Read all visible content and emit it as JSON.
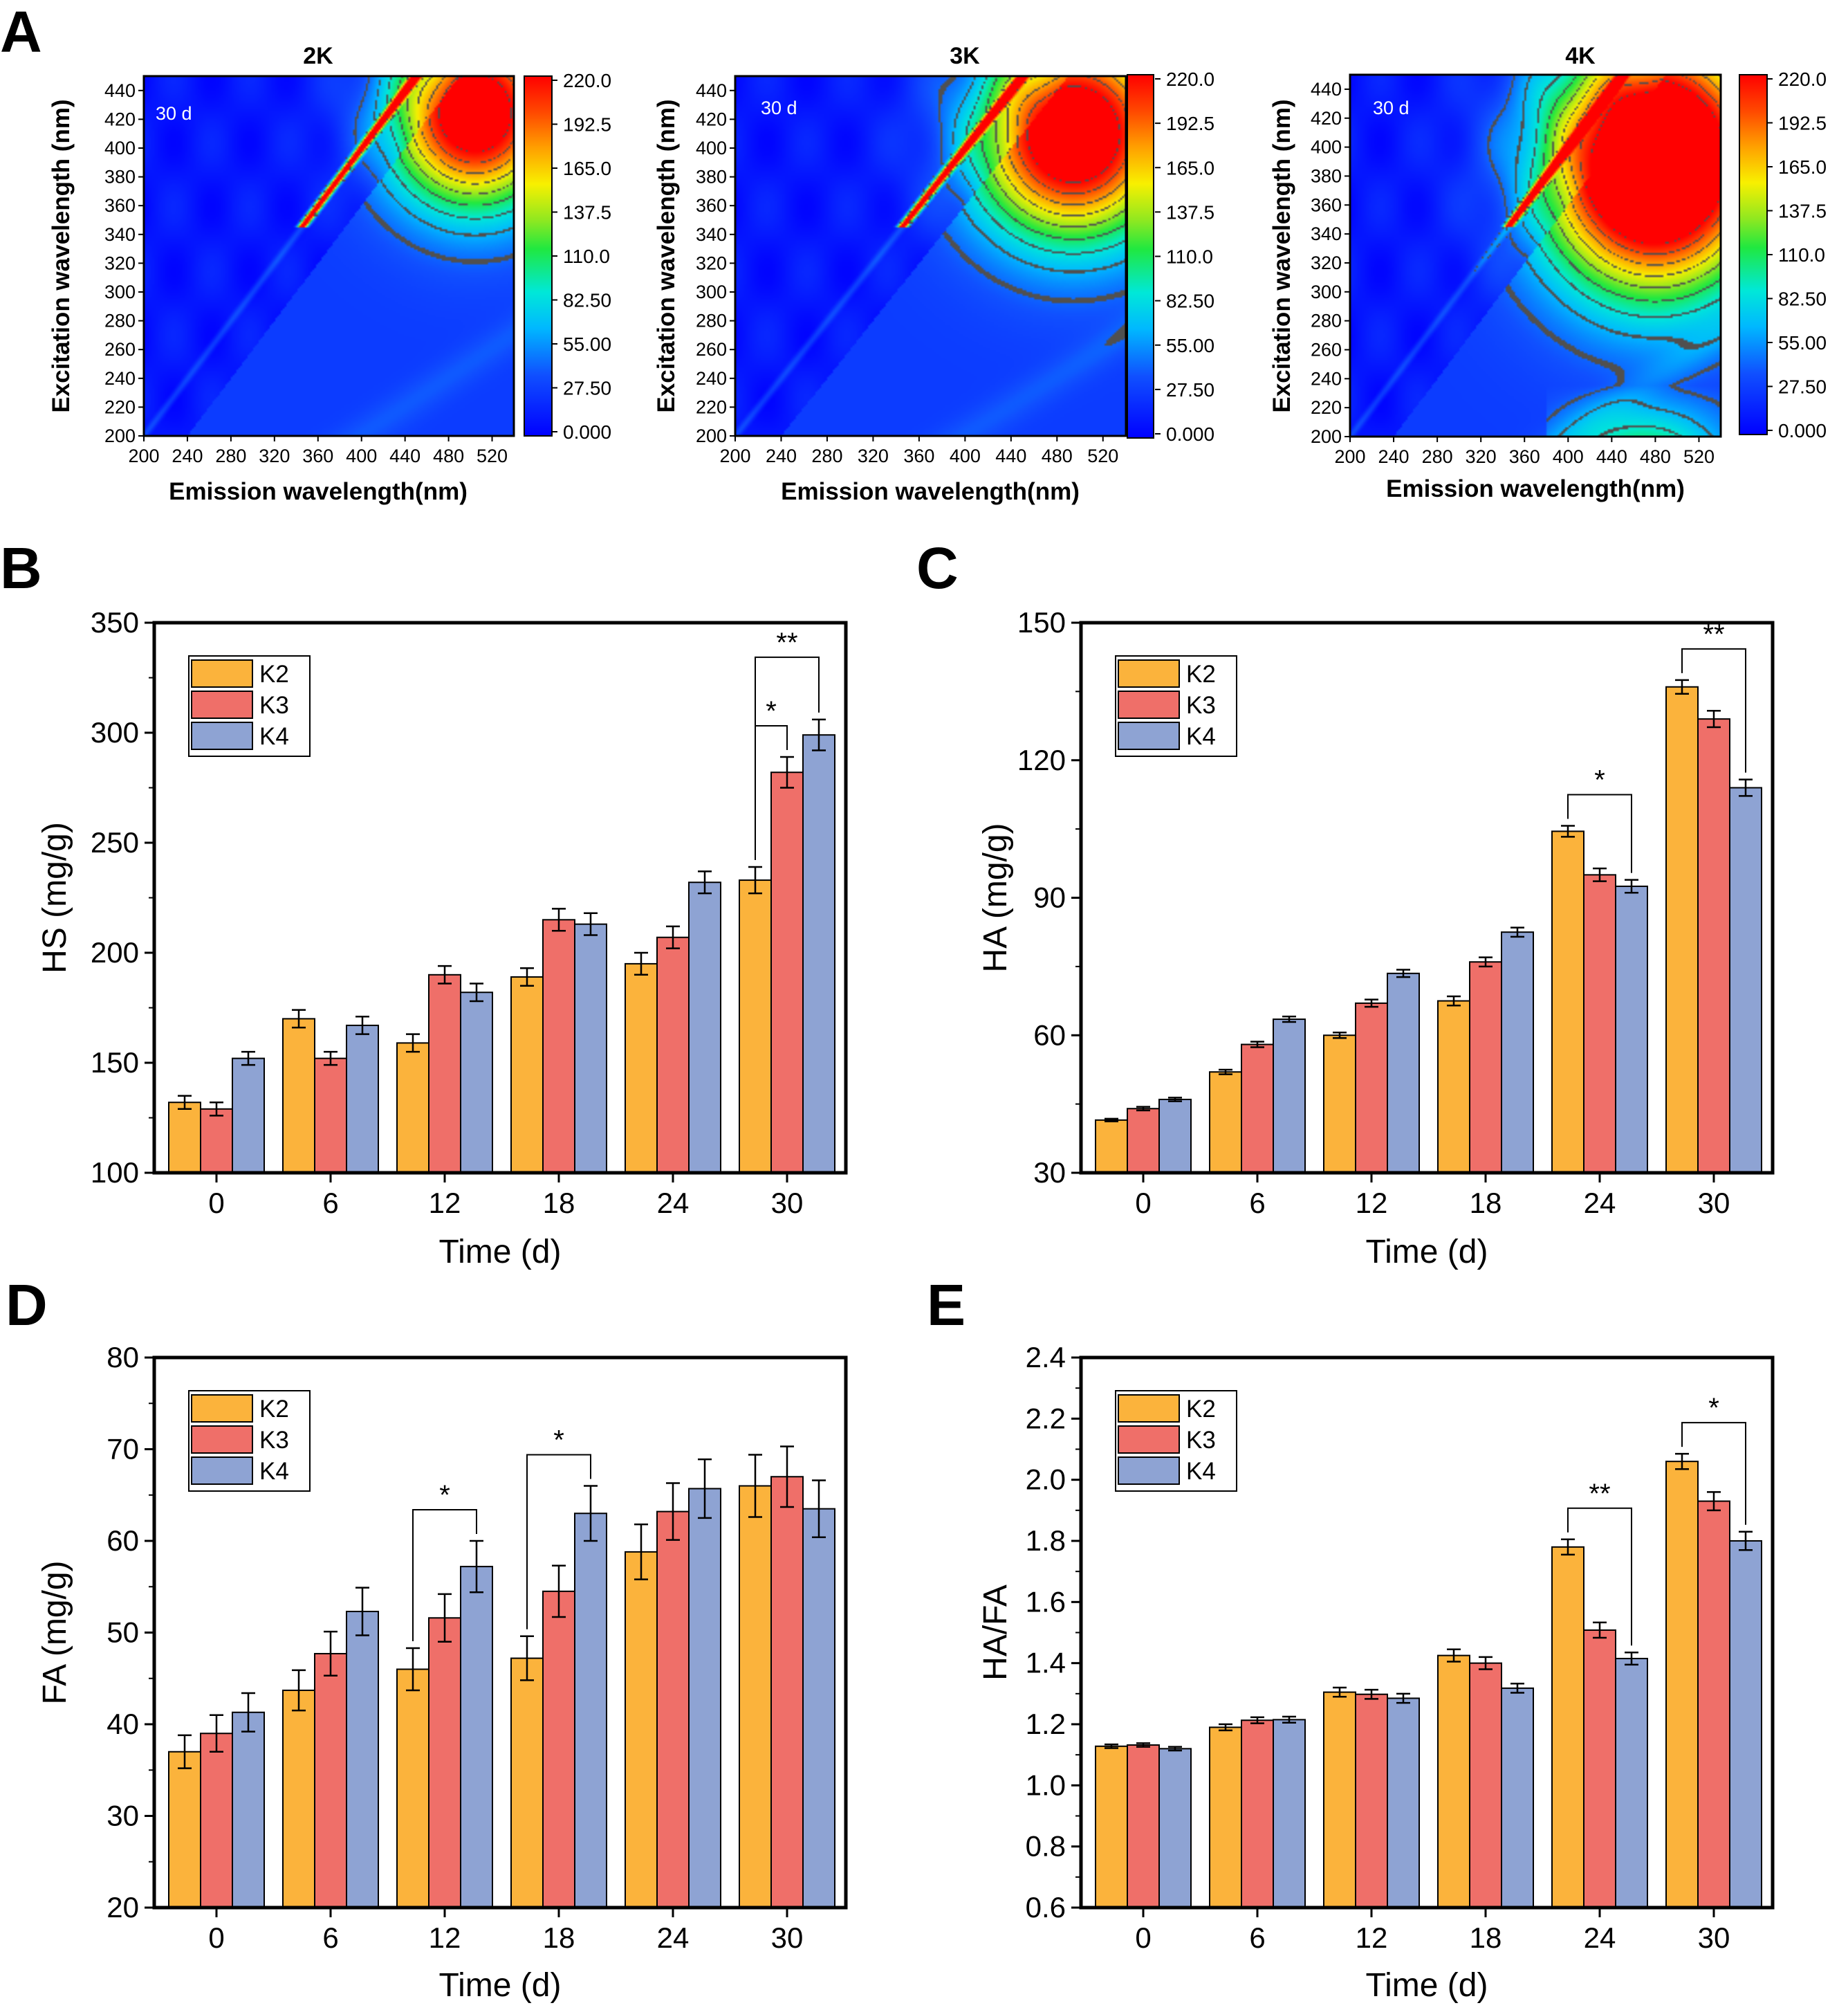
{
  "figure": {
    "letters": [
      "A",
      "B",
      "C",
      "D",
      "E"
    ]
  },
  "colors": {
    "K2": "#fbb33c",
    "K3": "#ef6f69",
    "K4": "#8ea3d3",
    "axis": "#000000"
  },
  "chart_data": [
    {
      "panel": "A",
      "type": "heatmap",
      "title": "2K",
      "inset_label": "30 d",
      "xlabel": "Emission wavelength(nm)",
      "ylabel": "Excitation wavelength (nm)",
      "xticks": [
        "200",
        "240",
        "280",
        "320",
        "360",
        "400",
        "440",
        "480",
        "520"
      ],
      "yticks": [
        "200",
        "220",
        "240",
        "260",
        "280",
        "300",
        "320",
        "340",
        "360",
        "380",
        "400",
        "420",
        "440"
      ],
      "xlim": [
        200,
        540
      ],
      "ylim": [
        200,
        450
      ],
      "colorbar_ticks": [
        "0.000",
        "27.50",
        "55.00",
        "82.50",
        "110.0",
        "137.5",
        "165.0",
        "192.5",
        "220.0"
      ],
      "peak": {
        "em": 505,
        "ex": 425,
        "intensity": 230,
        "spread_em": 55,
        "spread_ex": 45
      }
    },
    {
      "panel": "A",
      "type": "heatmap",
      "title": "3K",
      "inset_label": "30 d",
      "xlabel": "Emission wavelength(nm)",
      "ylabel": "Excitation wavelength (nm)",
      "xticks": [
        "200",
        "240",
        "280",
        "320",
        "360",
        "400",
        "440",
        "480",
        "520"
      ],
      "yticks": [
        "200",
        "220",
        "240",
        "260",
        "280",
        "300",
        "320",
        "340",
        "360",
        "380",
        "400",
        "420",
        "440"
      ],
      "xlim": [
        200,
        540
      ],
      "ylim": [
        200,
        450
      ],
      "colorbar_ticks": [
        "0.000",
        "27.50",
        "55.00",
        "82.50",
        "110.0",
        "137.5",
        "165.0",
        "192.5",
        "220.0"
      ],
      "peak": {
        "em": 495,
        "ex": 410,
        "intensity": 240,
        "spread_em": 60,
        "spread_ex": 50
      }
    },
    {
      "panel": "A",
      "type": "heatmap",
      "title": "4K",
      "inset_label": "30 d",
      "xlabel": "Emission wavelength(nm)",
      "ylabel": "Excitation wavelength (nm)",
      "xticks": [
        "200",
        "240",
        "280",
        "320",
        "360",
        "400",
        "440",
        "480",
        "520"
      ],
      "yticks": [
        "200",
        "220",
        "240",
        "260",
        "280",
        "300",
        "320",
        "340",
        "360",
        "380",
        "400",
        "420",
        "440"
      ],
      "xlim": [
        200,
        540
      ],
      "ylim": [
        200,
        450
      ],
      "colorbar_ticks": [
        "0.000",
        "27.50",
        "55.00",
        "82.50",
        "110.0",
        "137.5",
        "165.0",
        "192.5",
        "220.0"
      ],
      "peak": {
        "em": 480,
        "ex": 390,
        "intensity": 300,
        "spread_em": 70,
        "spread_ex": 60
      }
    },
    {
      "panel": "B",
      "type": "bar",
      "categories": [
        "0",
        "6",
        "12",
        "18",
        "24",
        "30"
      ],
      "xlabel": "Time (d)",
      "ylabel": "HS (mg/g)",
      "ylim": [
        100,
        350
      ],
      "yticks": [
        "100",
        "150",
        "200",
        "250",
        "300",
        "350"
      ],
      "legend": [
        "K2",
        "K3",
        "K4"
      ],
      "legend_position": "top-left",
      "series": [
        {
          "name": "K2",
          "values": [
            132,
            170,
            159,
            189,
            195,
            233
          ],
          "errors": [
            3,
            4,
            4,
            4,
            5,
            6
          ]
        },
        {
          "name": "K3",
          "values": [
            129,
            152,
            190,
            215,
            207,
            282
          ],
          "errors": [
            3,
            3,
            4,
            5,
            5,
            7
          ]
        },
        {
          "name": "K4",
          "values": [
            152,
            167,
            182,
            213,
            232,
            299
          ],
          "errors": [
            3,
            4,
            4,
            5,
            5,
            7
          ]
        }
      ],
      "significance": [
        {
          "category": "30",
          "from": "K2",
          "to": "K3",
          "label": "*"
        },
        {
          "category": "30",
          "from": "K2",
          "to": "K4",
          "label": "**"
        }
      ]
    },
    {
      "panel": "C",
      "type": "bar",
      "categories": [
        "0",
        "6",
        "12",
        "18",
        "24",
        "30"
      ],
      "xlabel": "Time (d)",
      "ylabel": "HA (mg/g)",
      "ylim": [
        30,
        150
      ],
      "yticks": [
        "30",
        "60",
        "90",
        "120",
        "150"
      ],
      "legend": [
        "K2",
        "K3",
        "K4"
      ],
      "legend_position": "top-left",
      "series": [
        {
          "name": "K2",
          "values": [
            41.5,
            52,
            60,
            67.5,
            104.5,
            136
          ],
          "errors": [
            0.3,
            0.5,
            0.6,
            1,
            1.2,
            1.5
          ]
        },
        {
          "name": "K3",
          "values": [
            44,
            58,
            67,
            76,
            95,
            129
          ],
          "errors": [
            0.4,
            0.6,
            0.8,
            1,
            1.4,
            1.8
          ]
        },
        {
          "name": "K4",
          "values": [
            46,
            63.5,
            73.5,
            82.5,
            92.5,
            114
          ],
          "errors": [
            0.4,
            0.6,
            0.8,
            1,
            1.4,
            1.8
          ]
        }
      ],
      "significance": [
        {
          "category": "24",
          "from": "K2",
          "to": "K4",
          "label": "*"
        },
        {
          "category": "30",
          "from": "K2",
          "to": "K4",
          "label": "**"
        }
      ]
    },
    {
      "panel": "D",
      "type": "bar",
      "categories": [
        "0",
        "6",
        "12",
        "18",
        "24",
        "30"
      ],
      "xlabel": "Time (d)",
      "ylabel": "FA (mg/g)",
      "ylim": [
        20,
        80
      ],
      "yticks": [
        "20",
        "30",
        "40",
        "50",
        "60",
        "70",
        "80"
      ],
      "legend": [
        "K2",
        "K3",
        "K4"
      ],
      "legend_position": "top-left",
      "series": [
        {
          "name": "K2",
          "values": [
            37,
            43.7,
            46,
            47.2,
            58.8,
            66
          ],
          "errors": [
            1.8,
            2.2,
            2.3,
            2.4,
            3,
            3.4
          ]
        },
        {
          "name": "K3",
          "values": [
            39,
            47.7,
            51.6,
            54.5,
            63.2,
            67
          ],
          "errors": [
            2,
            2.4,
            2.6,
            2.8,
            3.1,
            3.3
          ]
        },
        {
          "name": "K4",
          "values": [
            41.3,
            52.3,
            57.2,
            63,
            65.7,
            63.5
          ],
          "errors": [
            2.1,
            2.6,
            2.8,
            3,
            3.2,
            3.1
          ]
        }
      ],
      "significance": [
        {
          "category": "12",
          "from": "K2",
          "to": "K4",
          "label": "*"
        },
        {
          "category": "18",
          "from": "K2",
          "to": "K4",
          "label": "*"
        }
      ]
    },
    {
      "panel": "E",
      "type": "bar",
      "categories": [
        "0",
        "6",
        "12",
        "18",
        "24",
        "30"
      ],
      "xlabel": "Time (d)",
      "ylabel": "HA/FA",
      "ylim": [
        0.6,
        2.4
      ],
      "yticks": [
        "0.6",
        "0.8",
        "1.0",
        "1.2",
        "1.4",
        "1.6",
        "1.8",
        "2.0",
        "2.2",
        "2.4"
      ],
      "legend": [
        "K2",
        "K3",
        "K4"
      ],
      "legend_position": "top-left",
      "series": [
        {
          "name": "K2",
          "values": [
            1.128,
            1.19,
            1.305,
            1.425,
            1.78,
            2.06
          ],
          "errors": [
            0.006,
            0.01,
            0.015,
            0.02,
            0.025,
            0.025
          ]
        },
        {
          "name": "K3",
          "values": [
            1.132,
            1.213,
            1.298,
            1.4,
            1.508,
            1.93
          ],
          "errors": [
            0.006,
            0.01,
            0.015,
            0.02,
            0.025,
            0.03
          ]
        },
        {
          "name": "K4",
          "values": [
            1.12,
            1.215,
            1.285,
            1.318,
            1.415,
            1.8
          ],
          "errors": [
            0.006,
            0.01,
            0.015,
            0.015,
            0.02,
            0.03
          ]
        }
      ],
      "significance": [
        {
          "category": "24",
          "from": "K2",
          "to": "K4",
          "label": "**"
        },
        {
          "category": "30",
          "from": "K2",
          "to": "K4",
          "label": "*"
        }
      ]
    }
  ]
}
